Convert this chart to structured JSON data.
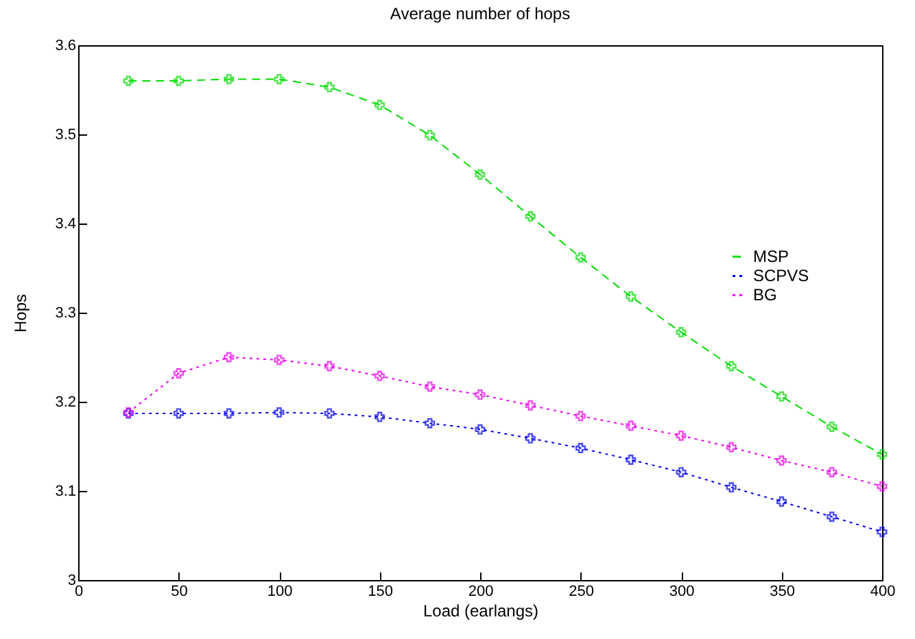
{
  "chart_data": {
    "type": "line",
    "title": "Average number of hops",
    "xlabel": "Load (earlangs)",
    "ylabel": "Hops",
    "x": [
      25,
      50,
      75,
      100,
      125,
      150,
      175,
      200,
      225,
      250,
      275,
      300,
      325,
      350,
      375,
      400
    ],
    "series": [
      {
        "name": "MSP",
        "color": "#00dd00",
        "line_style": "dashed",
        "values": [
          3.56,
          3.56,
          3.562,
          3.562,
          3.553,
          3.533,
          3.499,
          3.455,
          3.408,
          3.362,
          3.318,
          3.278,
          3.24,
          3.206,
          3.172,
          3.141
        ]
      },
      {
        "name": "SCPVS",
        "color": "#0000ee",
        "line_style": "dotted",
        "values": [
          3.187,
          3.187,
          3.187,
          3.188,
          3.187,
          3.183,
          3.176,
          3.169,
          3.159,
          3.148,
          3.135,
          3.121,
          3.104,
          3.088,
          3.071,
          3.054
        ]
      },
      {
        "name": "BG",
        "color": "#ee00ee",
        "line_style": "dotted",
        "values": [
          3.188,
          3.232,
          3.25,
          3.247,
          3.24,
          3.229,
          3.217,
          3.208,
          3.196,
          3.184,
          3.173,
          3.162,
          3.149,
          3.134,
          3.121,
          3.105
        ]
      }
    ],
    "xlim": [
      0,
      400
    ],
    "xticks": [
      0,
      50,
      100,
      150,
      200,
      250,
      300,
      350,
      400
    ],
    "ylim": [
      3,
      3.6
    ],
    "yticks": [
      3,
      3.1,
      3.2,
      3.3,
      3.4,
      3.5,
      3.6
    ],
    "marker": "cross",
    "legend": "right",
    "grid": false
  }
}
